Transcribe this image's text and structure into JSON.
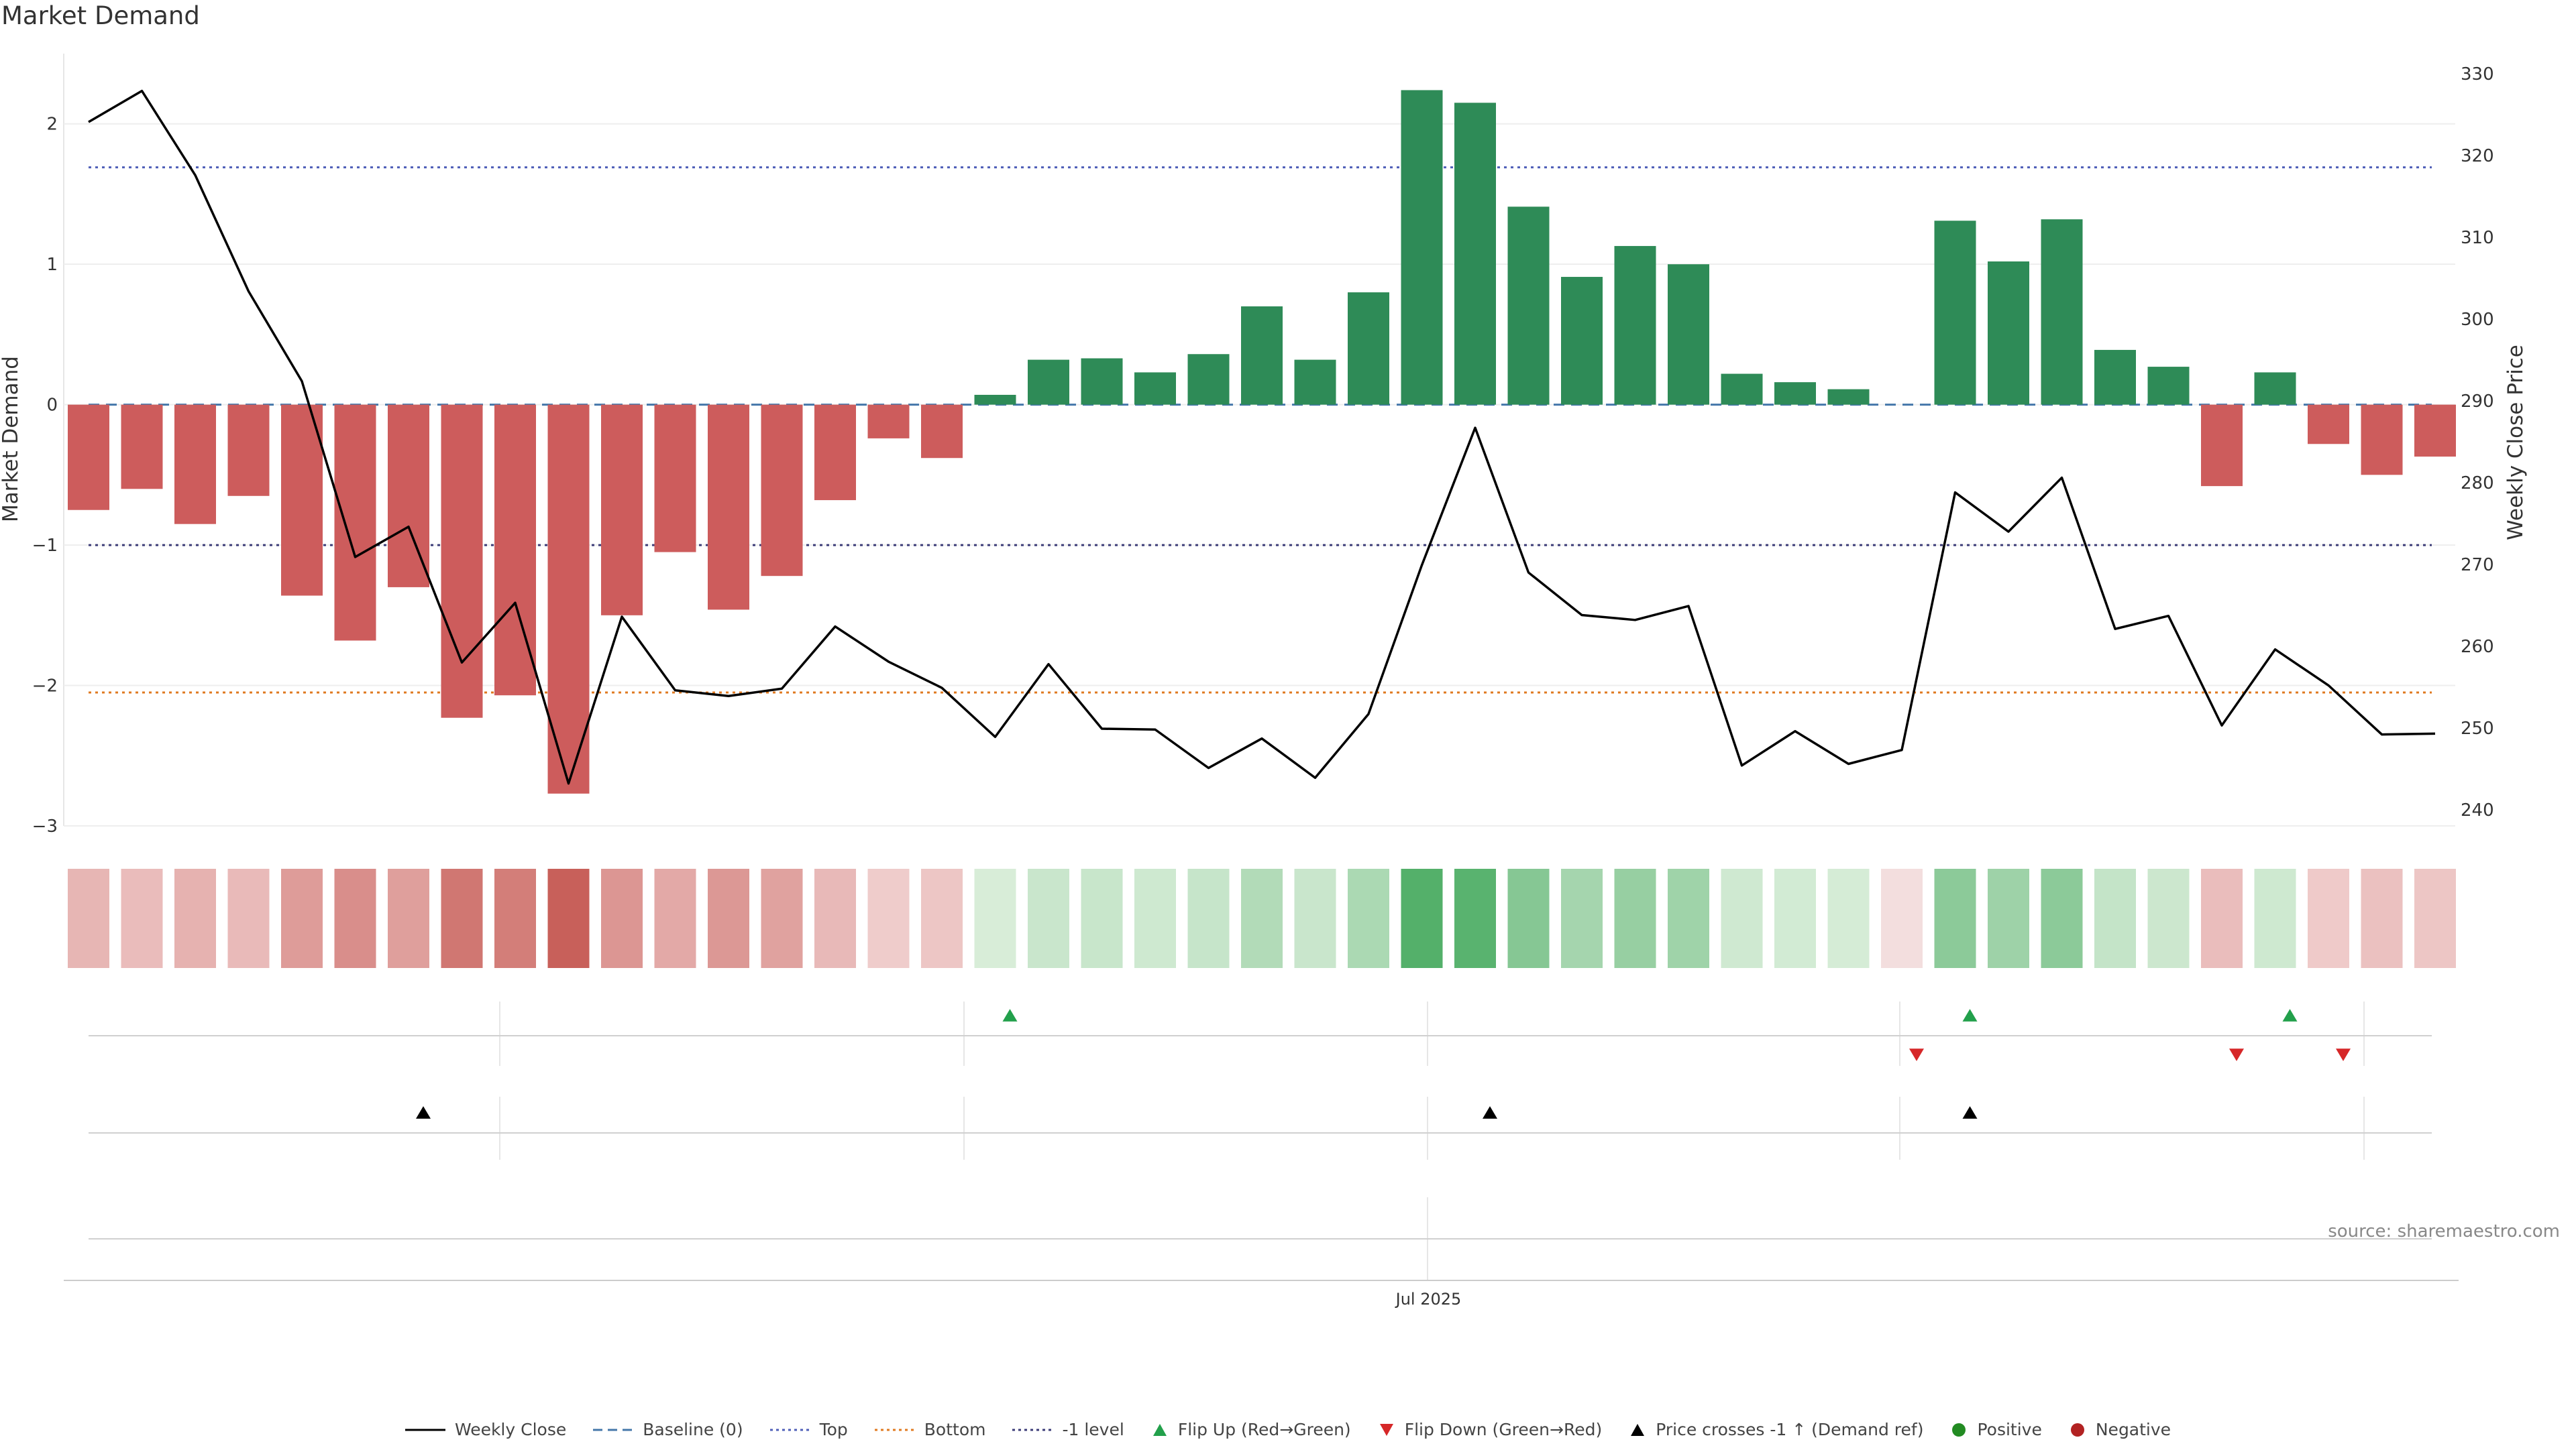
{
  "chart_data": {
    "type": "bar",
    "title": "Market Demand",
    "ylabel": "Market Demand",
    "y2label": "Weekly Close Price",
    "ylim": [
      -3.0,
      2.5
    ],
    "y2lim": [
      239,
      330
    ],
    "yticks": [
      -3,
      -2,
      -1,
      0,
      1,
      2
    ],
    "yticklabels": [
      "−3",
      "−2",
      "−1",
      "0",
      "1",
      "2"
    ],
    "y2ticks": [
      240,
      250,
      260,
      270,
      280,
      290,
      300,
      310,
      320,
      330
    ],
    "xtick_label": "Jul 2025",
    "xtick_index": 25.1,
    "reference_lines": [
      {
        "name": "Top",
        "value": 1.69,
        "color": "#4f5fb8",
        "dash": "dotted"
      },
      {
        "name": "Baseline (0)",
        "value": 0,
        "color": "#4477aa",
        "dash": "dashed"
      },
      {
        "name": "-1 level",
        "value": -1,
        "color": "#3c3c78",
        "dash": "dotted"
      },
      {
        "name": "Bottom",
        "value": -2.05,
        "color": "#e07a20",
        "dash": "dotted"
      }
    ],
    "demand": [
      -0.75,
      -0.6,
      -0.85,
      -0.65,
      -1.36,
      -1.68,
      -1.3,
      -2.23,
      -2.07,
      -2.77,
      -1.5,
      -1.05,
      -1.46,
      -1.22,
      -0.68,
      -0.24,
      -0.38,
      0.07,
      0.32,
      0.33,
      0.23,
      0.36,
      0.7,
      0.32,
      0.8,
      2.24,
      2.15,
      1.41,
      0.91,
      1.13,
      1.0,
      0.22,
      0.16,
      0.11,
      0.0,
      1.31,
      1.02,
      1.32,
      0.39,
      0.27,
      -0.58,
      0.23,
      -0.28,
      -0.5,
      -0.37
    ],
    "close": [
      324.1,
      327.9,
      317.6,
      303.4,
      292.4,
      270.9,
      274.6,
      258.0,
      265.3,
      243.2,
      263.6,
      254.6,
      253.9,
      254.8,
      262.4,
      258.1,
      254.9,
      248.9,
      257.8,
      249.9,
      249.8,
      245.1,
      248.7,
      243.9,
      251.7,
      269.9,
      286.7,
      269.0,
      263.8,
      263.2,
      264.9,
      245.4,
      249.6,
      245.6,
      247.3,
      278.8,
      274.0,
      280.6,
      262.1,
      263.7,
      250.3,
      259.6,
      255.2,
      249.2,
      249.3
    ],
    "flip_up_indices": [
      17,
      35,
      41
    ],
    "flip_down_indices": [
      34,
      40,
      42
    ],
    "price_cross_indices": [
      6,
      26,
      35
    ],
    "positive_color": "#2e8b57",
    "negative_color": "#cd5c5c",
    "source": "source: sharemaestro.com",
    "legend": [
      {
        "label": "Weekly Close",
        "kind": "line",
        "color": "#000000",
        "dash": "solid"
      },
      {
        "label": "Baseline (0)",
        "kind": "line",
        "color": "#4477aa",
        "dash": "dashed"
      },
      {
        "label": "Top",
        "kind": "line",
        "color": "#4f5fb8",
        "dash": "dotted"
      },
      {
        "label": "Bottom",
        "kind": "line",
        "color": "#e07a20",
        "dash": "dotted"
      },
      {
        "label": "-1 level",
        "kind": "line",
        "color": "#3c3c78",
        "dash": "dotted"
      },
      {
        "label": "Flip Up (Red→Green)",
        "kind": "tri-up",
        "color": "#22a04b"
      },
      {
        "label": "Flip Down (Green→Red)",
        "kind": "tri-down",
        "color": "#d62728"
      },
      {
        "label": "Price crosses -1 ↑ (Demand ref)",
        "kind": "tri-up",
        "color": "#000000"
      },
      {
        "label": "Positive",
        "kind": "dot",
        "color": "#228b22"
      },
      {
        "label": "Negative",
        "kind": "dot",
        "color": "#b22222"
      }
    ]
  }
}
